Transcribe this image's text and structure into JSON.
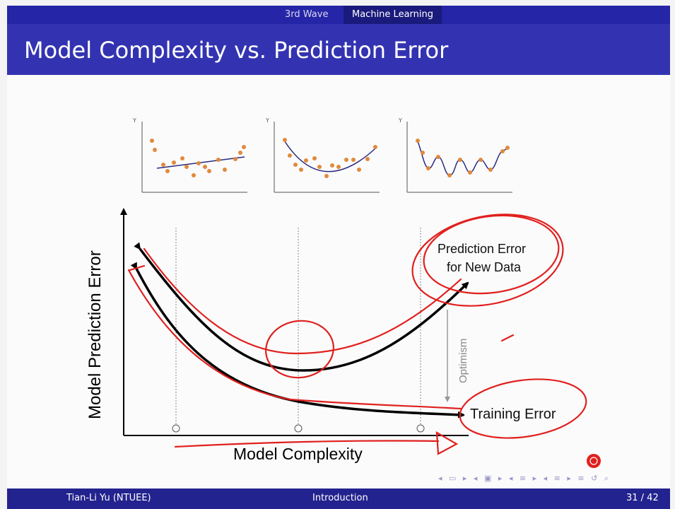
{
  "nav": {
    "section_left": "3rd Wave",
    "section_active": "Machine Learning"
  },
  "slide": {
    "title": "Model Complexity vs. Prediction Error"
  },
  "figure": {
    "y_axis_label": "Model Prediction Error",
    "x_axis_label": "Model Complexity",
    "curve_test_label_1": "Prediction Error",
    "curve_test_label_2": "for New Data",
    "curve_train_label": "Training Error",
    "gap_label": "Optimism",
    "mini_axis_y": "Y"
  },
  "footer": {
    "author": "Tian-Li Yu  (NTUEE)",
    "section": "Introduction",
    "page": "31 / 42"
  },
  "colors": {
    "annotation": "#e0201e",
    "scatter": "#e08a3c",
    "fit": "#2a2a80"
  }
}
